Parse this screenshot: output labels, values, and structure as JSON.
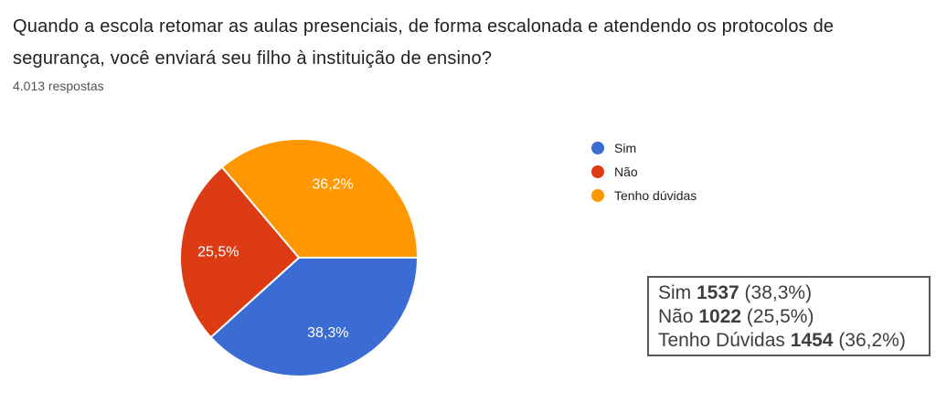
{
  "header": {
    "title_line1": "Quando a escola retomar as aulas presenciais, de forma escalonada e atendendo os protocolos de",
    "title_line2": "segurança, você enviará seu filho à instituição de ensino?",
    "responses_count": "4.013 respostas"
  },
  "chart_data": {
    "type": "pie",
    "title": "Quando a escola retomar as aulas presenciais, de forma escalonada e atendendo os protocolos de segurança, você enviará seu filho à instituição de ensino?",
    "subtitle": "4.013 respostas",
    "total_responses": 4013,
    "categories": [
      "Sim",
      "Não",
      "Tenho dúvidas"
    ],
    "values": [
      1537,
      1022,
      1454
    ],
    "percentages": [
      38.3,
      25.5,
      36.2
    ],
    "percent_labels": [
      "38,3%",
      "25,5%",
      "36,2%"
    ],
    "colors": [
      "#3b6cd4",
      "#dc3b14",
      "#ff9800"
    ],
    "legend_position": "right",
    "start_angle_deg": 0,
    "direction": "clockwise",
    "slice_border_color": "#ffffff"
  },
  "legend": {
    "items": [
      {
        "label": "Sim",
        "color": "#3b6cd4"
      },
      {
        "label": "Não",
        "color": "#dc3b14"
      },
      {
        "label": "Tenho dúvidas",
        "color": "#ff9800"
      }
    ]
  },
  "summary_box": {
    "rows": [
      {
        "label": "Sim",
        "count": "1537",
        "pct": "(38,3%)"
      },
      {
        "label": "Não",
        "count": "1022",
        "pct": "(25,5%)"
      },
      {
        "label": "Tenho Dúvidas",
        "count": "1454",
        "pct": "(36,2%)"
      }
    ]
  }
}
